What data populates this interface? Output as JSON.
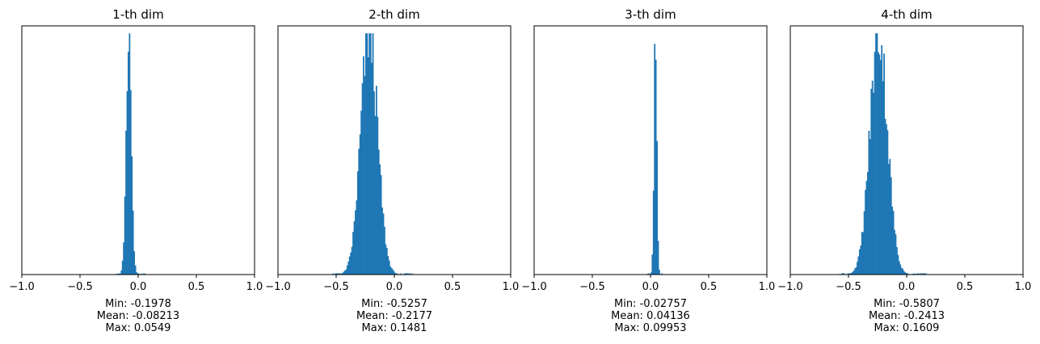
{
  "chart_data": [
    {
      "type": "bar",
      "title": "1-th dim",
      "xlabel": "",
      "ylabel": "",
      "xlim": [
        -1.0,
        1.0
      ],
      "xticks": [
        "−1.0",
        "−0.5",
        "0.0",
        "0.5",
        "1.0"
      ],
      "yticks_visible": false,
      "stats": {
        "min": "Min: -0.1978",
        "mean": "Mean: -0.08213",
        "max": "Max: 0.0549"
      },
      "color": "#1f77b4",
      "mean_value": -0.08213,
      "std_value": 0.022,
      "min_value": -0.1978,
      "max_value": 0.0549,
      "peak": 0.97
    },
    {
      "type": "bar",
      "title": "2-th dim",
      "xlabel": "",
      "ylabel": "",
      "xlim": [
        -1.0,
        1.0
      ],
      "xticks": [
        "−1.0",
        "−0.5",
        "0.0",
        "0.5",
        "1.0"
      ],
      "yticks_visible": false,
      "stats": {
        "min": "Min: -0.5257",
        "mean": "Mean: -0.2177",
        "max": "Max: 0.1481"
      },
      "color": "#1f77b4",
      "mean_value": -0.2177,
      "std_value": 0.072,
      "min_value": -0.5257,
      "max_value": 0.1481,
      "peak": 0.97
    },
    {
      "type": "bar",
      "title": "3-th dim",
      "xlabel": "",
      "ylabel": "",
      "xlim": [
        -1.0,
        1.0
      ],
      "xticks": [
        "−1.0",
        "−0.5",
        "0.0",
        "0.5",
        "1.0"
      ],
      "yticks_visible": false,
      "stats": {
        "min": "Min: -0.02757",
        "mean": "Mean: 0.04136",
        "max": "Max: 0.09953"
      },
      "color": "#1f77b4",
      "mean_value": 0.04136,
      "std_value": 0.012,
      "min_value": -0.02757,
      "max_value": 0.09953,
      "peak": 0.95
    },
    {
      "type": "bar",
      "title": "4-th dim",
      "xlabel": "",
      "ylabel": "",
      "xlim": [
        -1.0,
        1.0
      ],
      "xticks": [
        "−1.0",
        "−0.5",
        "0.0",
        "0.5",
        "1.0"
      ],
      "yticks_visible": false,
      "stats": {
        "min": "Min: -0.5807",
        "mean": "Mean: -0.2413",
        "max": "Max: 0.1609"
      },
      "color": "#1f77b4",
      "mean_value": -0.2413,
      "std_value": 0.075,
      "min_value": -0.5807,
      "max_value": 0.1609,
      "peak": 0.97
    }
  ]
}
